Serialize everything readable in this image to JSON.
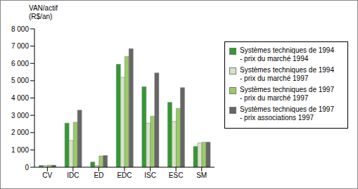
{
  "chart_data": {
    "type": "bar",
    "y_label": "VAN/actif (R$/an)",
    "categories": [
      "CV",
      "IDC",
      "ED",
      "EDC",
      "ISC",
      "ESC",
      "SM"
    ],
    "series": [
      {
        "name": "Systèmes techniques de 1994 - prix du marché 1994",
        "color": "#339933",
        "values": [
          100,
          2550,
          300,
          5950,
          4650,
          3750,
          1200
        ]
      },
      {
        "name": "Systèmes techniques de 1994 - prix du marché 1997",
        "color": "#d6e4c4",
        "values": [
          100,
          1550,
          100,
          5200,
          2550,
          2650,
          1400
        ]
      },
      {
        "name": "Systèmes techniques de 1997 - prix du marché 1997",
        "color": "#99cc66",
        "values": [
          120,
          2600,
          650,
          6400,
          2950,
          3400,
          1450
        ]
      },
      {
        "name": "Systèmes techniques de 1997 - prix associations 1997",
        "color": "#666666",
        "values": [
          120,
          3300,
          680,
          6850,
          5450,
          4600,
          1450
        ]
      }
    ],
    "ylim": [
      0,
      8000
    ],
    "yticks": [
      0,
      {
        "value": 1000,
        "label": "1 000"
      },
      {
        "value": 2000,
        "label": "2 000"
      },
      {
        "value": 3000,
        "label": "3 000"
      },
      {
        "value": 4000,
        "label": "4 000"
      },
      {
        "value": 5000,
        "label": "5 000"
      },
      {
        "value": 6000,
        "label": "6 000"
      },
      {
        "value": 7000,
        "label": "7 000"
      },
      {
        "value": 8000,
        "label": "8 000"
      }
    ],
    "grid": false,
    "legend": "right"
  }
}
